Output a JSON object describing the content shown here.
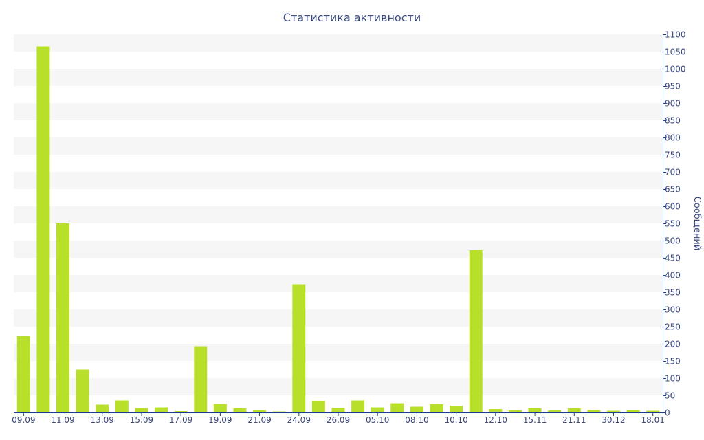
{
  "chart_data": {
    "type": "bar",
    "title": "Статистика активности",
    "ylabel": "Сообщений",
    "ylim": [
      0,
      1100
    ],
    "y_ticks": [
      0,
      50,
      100,
      150,
      200,
      250,
      300,
      350,
      400,
      450,
      500,
      550,
      600,
      650,
      700,
      750,
      800,
      850,
      900,
      950,
      1000,
      1050,
      1100
    ],
    "x_tick_labels": [
      "09.09",
      "11.09",
      "13.09",
      "15.09",
      "17.09",
      "19.09",
      "21.09",
      "24.09",
      "26.09",
      "05.10",
      "08.10",
      "10.10",
      "12.10",
      "15.11",
      "21.11",
      "30.12",
      "18.01"
    ],
    "values": [
      223,
      1065,
      550,
      125,
      23,
      35,
      13,
      15,
      4,
      193,
      25,
      12,
      7,
      3,
      373,
      33,
      14,
      35,
      15,
      27,
      17,
      24,
      20,
      472,
      10,
      6,
      12,
      6,
      12,
      7,
      5,
      7,
      5
    ],
    "grid": "alternating horizontal bands",
    "bar_color": "#b8e02b",
    "band_color": "#f6f6f6",
    "axis_color": "#1c3f8d",
    "text_color": "#3b4a82"
  }
}
